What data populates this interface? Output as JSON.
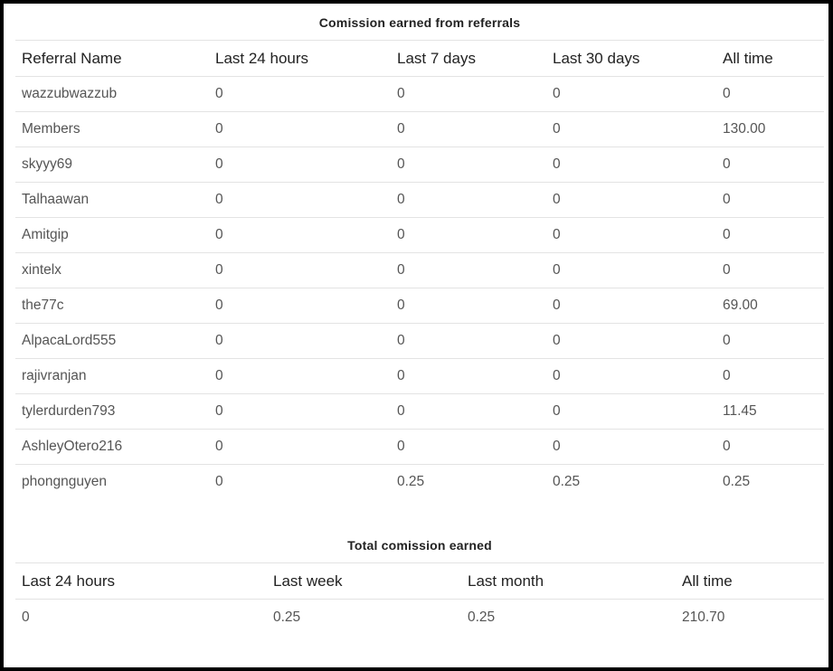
{
  "referrals": {
    "caption": "Comission earned from referrals",
    "headers": [
      "Referral Name",
      "Last 24 hours",
      "Last 7 days",
      "Last 30 days",
      "All time"
    ],
    "rows": [
      [
        "wazzubwazzub",
        "0",
        "0",
        "0",
        "0"
      ],
      [
        "Members",
        "0",
        "0",
        "0",
        "130.00"
      ],
      [
        "skyyy69",
        "0",
        "0",
        "0",
        "0"
      ],
      [
        "Talhaawan",
        "0",
        "0",
        "0",
        "0"
      ],
      [
        "Amitgip",
        "0",
        "0",
        "0",
        "0"
      ],
      [
        "xintelx",
        "0",
        "0",
        "0",
        "0"
      ],
      [
        "the77c",
        "0",
        "0",
        "0",
        "69.00"
      ],
      [
        "AlpacaLord555",
        "0",
        "0",
        "0",
        "0"
      ],
      [
        "rajivranjan",
        "0",
        "0",
        "0",
        "0"
      ],
      [
        "tylerdurden793",
        "0",
        "0",
        "0",
        "11.45"
      ],
      [
        "AshleyOtero216",
        "0",
        "0",
        "0",
        "0"
      ],
      [
        "phongnguyen",
        "0",
        "0.25",
        "0.25",
        "0.25"
      ]
    ]
  },
  "totals": {
    "caption": "Total comission earned",
    "headers": [
      "Last 24 hours",
      "Last week",
      "Last month",
      "All time"
    ],
    "row": [
      "0",
      "0.25",
      "0.25",
      "210.70"
    ]
  }
}
